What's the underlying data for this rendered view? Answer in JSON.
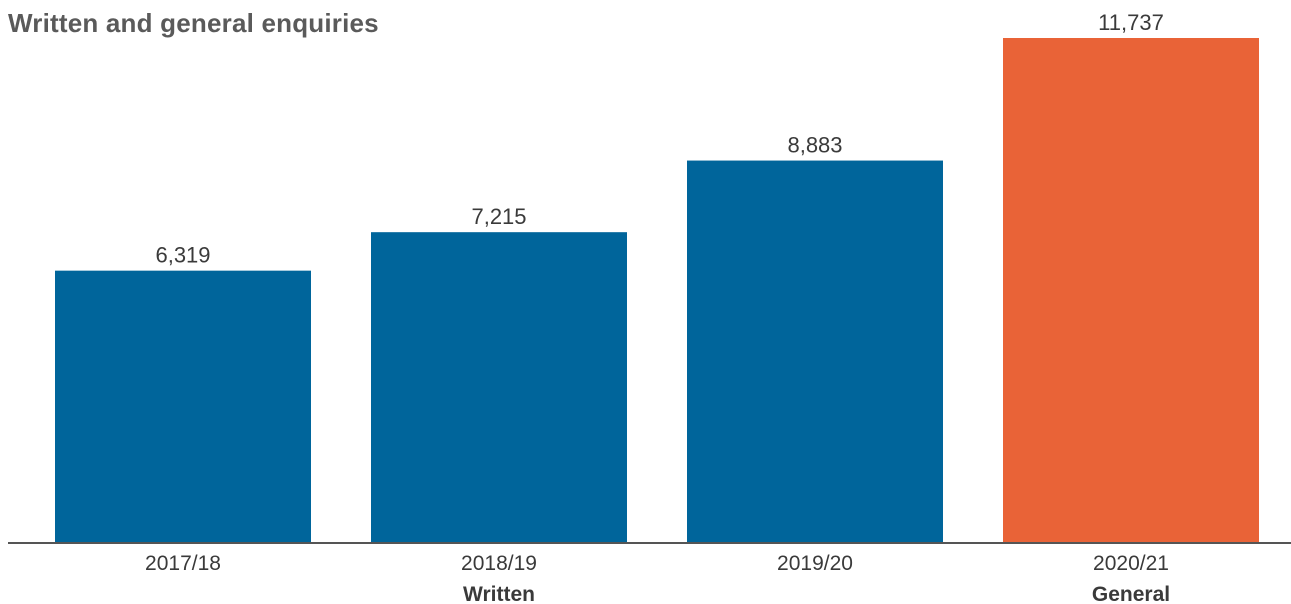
{
  "chart_data": {
    "type": "bar",
    "title": "Written and general enquiries",
    "categories": [
      "2017/18",
      "2018/19",
      "2019/20",
      "2020/21"
    ],
    "values": [
      6319,
      7215,
      8883,
      11737
    ],
    "value_labels": [
      "6,319",
      "7,215",
      "8,883",
      "11,737"
    ],
    "groups": [
      "Written",
      "Written",
      "Written",
      "General"
    ],
    "group_labels": [
      {
        "label": "Written",
        "under_category": "2018/19"
      },
      {
        "label": "General",
        "under_category": "2020/21"
      }
    ],
    "colors": {
      "Written": "#00659b",
      "General": "#e96337"
    },
    "axis_color": "#555555",
    "ylim": [
      0,
      11737
    ],
    "grid": false,
    "xlabel": "",
    "ylabel": ""
  }
}
